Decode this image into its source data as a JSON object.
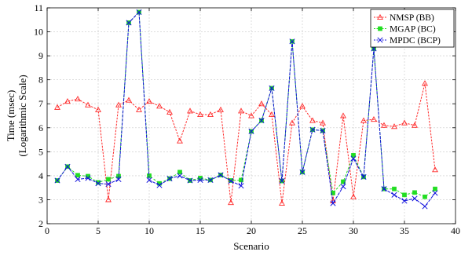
{
  "chart_data": {
    "type": "line",
    "title": "",
    "xlabel": "Scenario",
    "ylabel": "Time (msec)",
    "ylabel_sub": "(Logarithmic Scale)",
    "xlim": [
      0,
      40
    ],
    "ylim": [
      2,
      11
    ],
    "xticks": [
      0,
      5,
      10,
      15,
      20,
      25,
      30,
      35,
      40
    ],
    "yticks": [
      2,
      3,
      4,
      5,
      6,
      7,
      8,
      9,
      10,
      11
    ],
    "grid": true,
    "legend_position": "top-right",
    "x": [
      1,
      2,
      3,
      4,
      5,
      6,
      7,
      8,
      9,
      10,
      11,
      12,
      13,
      14,
      15,
      16,
      17,
      18,
      19,
      20,
      21,
      22,
      23,
      24,
      25,
      26,
      27,
      28,
      29,
      30,
      31,
      32,
      33,
      34,
      35,
      36,
      37,
      38
    ],
    "series": [
      {
        "name": "NMSP (BB)",
        "color": "#ff2a2a",
        "marker": "triangle",
        "values": [
          6.85,
          7.1,
          7.2,
          6.95,
          6.75,
          3.0,
          6.95,
          7.15,
          6.75,
          7.1,
          6.9,
          6.65,
          5.45,
          6.7,
          6.55,
          6.55,
          6.75,
          2.88,
          6.7,
          6.5,
          7.0,
          6.55,
          2.85,
          6.2,
          6.9,
          6.3,
          6.2,
          2.95,
          6.5,
          3.12,
          6.3,
          6.35,
          6.1,
          6.05,
          6.2,
          6.1,
          7.85,
          4.25
        ]
      },
      {
        "name": "MGAP (BC)",
        "color": "#22dd22",
        "marker": "square",
        "values": [
          3.8,
          4.38,
          4.02,
          3.98,
          3.72,
          3.85,
          3.98,
          10.38,
          10.82,
          4.0,
          3.68,
          3.88,
          4.15,
          3.8,
          3.9,
          3.82,
          4.03,
          3.8,
          3.82,
          5.85,
          6.3,
          7.65,
          3.78,
          9.6,
          4.15,
          5.92,
          5.88,
          3.28,
          3.75,
          4.85,
          3.95,
          9.3,
          3.45,
          3.45,
          3.2,
          3.3,
          3.12,
          3.45
        ]
      },
      {
        "name": "MPDC (BCP)",
        "color": "#1111dd",
        "marker": "x",
        "values": [
          3.8,
          4.38,
          3.85,
          3.9,
          3.68,
          3.65,
          3.85,
          10.38,
          10.82,
          3.82,
          3.6,
          3.88,
          4.0,
          3.8,
          3.82,
          3.82,
          4.03,
          3.78,
          3.58,
          5.85,
          6.3,
          7.65,
          3.78,
          9.6,
          4.15,
          5.92,
          5.88,
          2.85,
          3.55,
          4.72,
          3.95,
          9.3,
          3.45,
          3.2,
          2.95,
          3.05,
          2.72,
          3.28
        ]
      }
    ]
  }
}
